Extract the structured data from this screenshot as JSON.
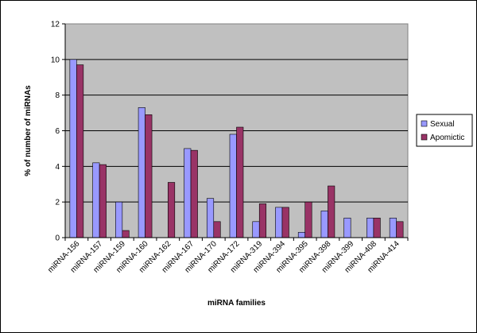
{
  "chart_data": {
    "type": "bar",
    "title": "",
    "xlabel": "miRNA families",
    "ylabel": "% of number of miRNAs",
    "ylim": [
      0,
      12
    ],
    "yticks": [
      "0",
      "2",
      "4",
      "6",
      "8",
      "10",
      "12"
    ],
    "grid": true,
    "legend_position": "right",
    "plot_background": "#c0c0c0",
    "categories": [
      "miRNA-156",
      "miRNA-157",
      "miRNA-159",
      "miRNA-160",
      "miRNA-162",
      "miRNA-167",
      "miRNA-170",
      "miRNA-172",
      "miRNA-319",
      "miRNA-394",
      "miRNA-395",
      "miRNA-398",
      "miRNA-399",
      "miRNA-408",
      "miRNA-414"
    ],
    "series": [
      {
        "name": "Sexual",
        "color": "#9999ff",
        "values": [
          10,
          4.2,
          2.0,
          7.3,
          0,
          5.0,
          2.2,
          5.8,
          0.9,
          1.7,
          0.3,
          1.5,
          1.1,
          1.1,
          1.1
        ]
      },
      {
        "name": "Apomictic",
        "color": "#993366",
        "values": [
          9.7,
          4.1,
          0.4,
          6.9,
          3.1,
          4.9,
          0.9,
          6.2,
          1.9,
          1.7,
          2.0,
          2.9,
          0,
          1.1,
          0.9
        ]
      }
    ]
  }
}
